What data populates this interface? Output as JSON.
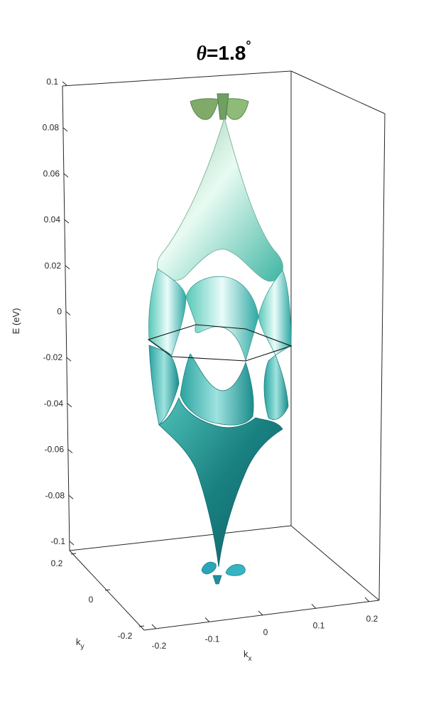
{
  "chart_data": {
    "type": "surface3d",
    "title_symbol": "θ",
    "title_value": "=1.8",
    "title_unit": "°",
    "zlabel": "E (eV)",
    "xlabel_base": "k",
    "xlabel_sub": "x",
    "ylabel_base": "k",
    "ylabel_sub": "y",
    "z_ticks": [
      "0.1",
      "0.08",
      "0.06",
      "0.04",
      "0.02",
      "0",
      "-0.02",
      "-0.04",
      "-0.06",
      "-0.08",
      "-0.1"
    ],
    "z_tick_values": [
      0.1,
      0.08,
      0.06,
      0.04,
      0.02,
      0,
      -0.02,
      -0.04,
      -0.06,
      -0.08,
      -0.1
    ],
    "x_ticks": [
      "-0.2",
      "-0.1",
      "0",
      "0.1",
      "0.2"
    ],
    "y_ticks": [
      "0.2",
      "0",
      "-0.2"
    ],
    "zlim": [
      -0.1,
      0.1
    ],
    "xlim": [
      -0.2,
      0.2
    ],
    "ylim": [
      -0.2,
      0.2
    ],
    "grid": false,
    "colors": {
      "upper_band": "#9fd8b5",
      "lower_band": "#1f8a8a",
      "remote_upper": "#7faa6a",
      "remote_lower": "#2aa6b8",
      "axes": "#262626",
      "background": "#ffffff"
    }
  }
}
